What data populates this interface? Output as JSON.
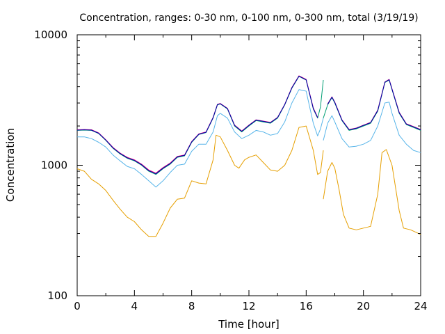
{
  "chart_data": {
    "type": "line",
    "title": "Concentration, ranges: 0-30 nm, 0-100 nm, 0-300 nm, total (3/19/19)",
    "xlabel": "Time [hour]",
    "ylabel": "Concentration",
    "xlim": [
      0,
      24
    ],
    "ylim": [
      100,
      10000
    ],
    "yscale": "log",
    "xticks": [
      0,
      4,
      8,
      12,
      16,
      20,
      24
    ],
    "yticks": [
      100,
      1000,
      10000
    ],
    "xtick_labels": [
      "0",
      "4",
      "8",
      "12",
      "16",
      "20",
      "24"
    ],
    "ytick_labels": [
      "100",
      "1000",
      "10000"
    ],
    "grid": false,
    "legend": "none",
    "series": [
      {
        "color": "#e69f00",
        "points": [
          [
            0,
            940
          ],
          [
            0.5,
            900
          ],
          [
            1,
            780
          ],
          [
            1.5,
            720
          ],
          [
            2,
            640
          ],
          [
            2.5,
            540
          ],
          [
            3,
            460
          ],
          [
            3.5,
            400
          ],
          [
            4,
            370
          ],
          [
            4.5,
            320
          ],
          [
            5,
            285
          ],
          [
            5.5,
            285
          ],
          [
            6,
            360
          ],
          [
            6.5,
            470
          ],
          [
            7,
            550
          ],
          [
            7.5,
            560
          ],
          [
            8,
            760
          ],
          [
            8.5,
            730
          ],
          [
            9,
            720
          ],
          [
            9.5,
            1100
          ],
          [
            9.7,
            1700
          ],
          [
            10,
            1650
          ],
          [
            10.5,
            1300
          ],
          [
            11,
            1000
          ],
          [
            11.3,
            950
          ],
          [
            11.7,
            1100
          ],
          [
            12,
            1150
          ],
          [
            12.5,
            1200
          ],
          [
            13,
            1050
          ],
          [
            13.5,
            920
          ],
          [
            14,
            900
          ],
          [
            14.5,
            1000
          ],
          [
            15,
            1300
          ],
          [
            15.5,
            1950
          ],
          [
            16,
            2000
          ],
          [
            16.5,
            1300
          ],
          [
            16.8,
            850
          ],
          [
            17,
            880
          ],
          [
            17.2,
            1300
          ]
        ],
        "points_2": [
          [
            17.2,
            550
          ],
          [
            17.5,
            900
          ],
          [
            17.8,
            1050
          ],
          [
            18,
            950
          ],
          [
            18.3,
            650
          ],
          [
            18.6,
            420
          ],
          [
            19,
            330
          ],
          [
            19.5,
            320
          ],
          [
            20,
            330
          ],
          [
            20.5,
            340
          ],
          [
            21,
            600
          ],
          [
            21.3,
            1250
          ],
          [
            21.6,
            1320
          ],
          [
            22,
            1000
          ],
          [
            22.5,
            450
          ],
          [
            22.8,
            330
          ],
          [
            23.3,
            320
          ],
          [
            24,
            295
          ]
        ]
      },
      {
        "color": "#56b4e9",
        "points": [
          [
            0,
            1650
          ],
          [
            0.5,
            1650
          ],
          [
            1,
            1600
          ],
          [
            1.5,
            1500
          ],
          [
            2,
            1380
          ],
          [
            2.5,
            1200
          ],
          [
            3,
            1080
          ],
          [
            3.5,
            980
          ],
          [
            4,
            940
          ],
          [
            4.5,
            850
          ],
          [
            5,
            760
          ],
          [
            5.5,
            680
          ],
          [
            6,
            760
          ],
          [
            6.5,
            880
          ],
          [
            7,
            1000
          ],
          [
            7.5,
            1020
          ],
          [
            8,
            1280
          ],
          [
            8.5,
            1450
          ],
          [
            9,
            1450
          ],
          [
            9.5,
            1800
          ],
          [
            9.8,
            2400
          ],
          [
            10,
            2500
          ],
          [
            10.5,
            2300
          ],
          [
            11,
            1800
          ],
          [
            11.5,
            1600
          ],
          [
            12,
            1700
          ],
          [
            12.5,
            1850
          ],
          [
            13,
            1800
          ],
          [
            13.5,
            1700
          ],
          [
            14,
            1750
          ],
          [
            14.5,
            2150
          ],
          [
            15,
            3000
          ],
          [
            15.5,
            3800
          ],
          [
            16,
            3700
          ],
          [
            16.5,
            2100
          ],
          [
            16.8,
            1680
          ],
          [
            17,
            1900
          ],
          [
            17.2,
            2300
          ]
        ],
        "points_2": [
          [
            17.2,
            1550
          ],
          [
            17.5,
            2100
          ],
          [
            17.8,
            2400
          ],
          [
            18,
            2150
          ],
          [
            18.5,
            1600
          ],
          [
            19,
            1380
          ],
          [
            19.5,
            1400
          ],
          [
            20,
            1450
          ],
          [
            20.5,
            1550
          ],
          [
            21,
            2000
          ],
          [
            21.5,
            3000
          ],
          [
            21.8,
            3050
          ],
          [
            22,
            2500
          ],
          [
            22.5,
            1700
          ],
          [
            23,
            1450
          ],
          [
            23.5,
            1300
          ],
          [
            24,
            1250
          ]
        ]
      },
      {
        "color": "#009e73",
        "points": [
          [
            0,
            1850
          ],
          [
            0.5,
            1860
          ],
          [
            1,
            1850
          ],
          [
            1.5,
            1750
          ],
          [
            2,
            1550
          ],
          [
            2.5,
            1350
          ],
          [
            3,
            1220
          ],
          [
            3.5,
            1130
          ],
          [
            4,
            1080
          ],
          [
            4.5,
            1000
          ],
          [
            5,
            900
          ],
          [
            5.5,
            850
          ],
          [
            6,
            940
          ],
          [
            6.5,
            1020
          ],
          [
            7,
            1150
          ],
          [
            7.5,
            1180
          ],
          [
            8,
            1500
          ],
          [
            8.5,
            1720
          ],
          [
            9,
            1780
          ],
          [
            9.5,
            2300
          ],
          [
            9.8,
            2900
          ],
          [
            10,
            2950
          ],
          [
            10.5,
            2700
          ],
          [
            11,
            2000
          ],
          [
            11.5,
            1800
          ],
          [
            12,
            2000
          ],
          [
            12.5,
            2200
          ],
          [
            13,
            2150
          ],
          [
            13.5,
            2100
          ],
          [
            14,
            2300
          ],
          [
            14.5,
            2900
          ],
          [
            15,
            3900
          ],
          [
            15.5,
            4800
          ],
          [
            16,
            4500
          ],
          [
            16.5,
            2700
          ],
          [
            16.8,
            2300
          ],
          [
            17,
            2800
          ],
          [
            17.2,
            4500
          ]
        ],
        "points_2": [
          [
            17.2,
            2300
          ],
          [
            17.5,
            2900
          ],
          [
            17.8,
            3300
          ],
          [
            18,
            3000
          ],
          [
            18.5,
            2200
          ],
          [
            19,
            1850
          ],
          [
            19.5,
            1900
          ],
          [
            20,
            2000
          ],
          [
            20.5,
            2100
          ],
          [
            21,
            2600
          ],
          [
            21.5,
            4300
          ],
          [
            21.8,
            4500
          ],
          [
            22,
            3800
          ],
          [
            22.5,
            2500
          ],
          [
            23,
            2050
          ],
          [
            23.5,
            1950
          ],
          [
            24,
            1850
          ]
        ]
      },
      {
        "color": "#e5007f",
        "points": [
          [
            0,
            1870
          ],
          [
            0.5,
            1880
          ],
          [
            1,
            1870
          ],
          [
            1.5,
            1770
          ],
          [
            2,
            1570
          ],
          [
            2.5,
            1370
          ],
          [
            3,
            1240
          ],
          [
            3.5,
            1150
          ],
          [
            4,
            1100
          ],
          [
            4.5,
            1020
          ],
          [
            5,
            920
          ],
          [
            5.5,
            870
          ],
          [
            6,
            960
          ],
          [
            6.5,
            1040
          ],
          [
            7,
            1170
          ],
          [
            7.5,
            1200
          ],
          [
            8,
            1520
          ],
          [
            8.5,
            1740
          ],
          [
            9,
            1800
          ],
          [
            9.5,
            2330
          ],
          [
            9.8,
            2930
          ],
          [
            10,
            2980
          ],
          [
            10.5,
            2730
          ],
          [
            11,
            2030
          ],
          [
            11.5,
            1830
          ],
          [
            12,
            2030
          ],
          [
            12.5,
            2230
          ],
          [
            13,
            2180
          ],
          [
            13.5,
            2130
          ],
          [
            14,
            2330
          ],
          [
            14.5,
            2930
          ],
          [
            15,
            3950
          ],
          [
            15.5,
            4850
          ],
          [
            16,
            4550
          ],
          [
            16.5,
            2750
          ],
          [
            16.8,
            2330
          ]
        ],
        "points_2": [
          [
            17.5,
            2950
          ],
          [
            17.8,
            3350
          ],
          [
            18,
            3050
          ],
          [
            18.5,
            2230
          ],
          [
            19,
            1880
          ],
          [
            19.5,
            1930
          ],
          [
            20,
            2030
          ],
          [
            20.5,
            2130
          ],
          [
            21,
            2650
          ],
          [
            21.5,
            4350
          ],
          [
            21.8,
            4550
          ],
          [
            22,
            3850
          ],
          [
            22.5,
            2550
          ],
          [
            23,
            2080
          ],
          [
            23.5,
            1980
          ],
          [
            24,
            1880
          ]
        ]
      },
      {
        "color": "#0000aa",
        "points": [
          [
            0,
            1860
          ],
          [
            0.5,
            1870
          ],
          [
            1,
            1860
          ],
          [
            1.5,
            1760
          ],
          [
            2,
            1560
          ],
          [
            2.5,
            1360
          ],
          [
            3,
            1230
          ],
          [
            3.5,
            1140
          ],
          [
            4,
            1090
          ],
          [
            4.5,
            1010
          ],
          [
            5,
            910
          ],
          [
            5.5,
            860
          ],
          [
            6,
            950
          ],
          [
            6.5,
            1030
          ],
          [
            7,
            1160
          ],
          [
            7.5,
            1190
          ],
          [
            8,
            1510
          ],
          [
            8.5,
            1730
          ],
          [
            9,
            1790
          ],
          [
            9.5,
            2320
          ],
          [
            9.8,
            2920
          ],
          [
            10,
            2960
          ],
          [
            10.5,
            2720
          ],
          [
            11,
            2020
          ],
          [
            11.5,
            1820
          ],
          [
            12,
            2020
          ],
          [
            12.5,
            2220
          ],
          [
            13,
            2170
          ],
          [
            13.5,
            2120
          ],
          [
            14,
            2320
          ],
          [
            14.5,
            2920
          ],
          [
            15,
            3930
          ],
          [
            15.5,
            4820
          ],
          [
            16,
            4520
          ],
          [
            16.5,
            2720
          ],
          [
            16.8,
            2320
          ]
        ],
        "points_2": [
          [
            17.5,
            2930
          ],
          [
            17.8,
            3330
          ],
          [
            18,
            3030
          ],
          [
            18.5,
            2220
          ],
          [
            19,
            1870
          ],
          [
            19.5,
            1920
          ],
          [
            20,
            2020
          ],
          [
            20.5,
            2120
          ],
          [
            21,
            2630
          ],
          [
            21.5,
            4330
          ],
          [
            21.8,
            4530
          ],
          [
            22,
            3830
          ],
          [
            22.5,
            2530
          ],
          [
            23,
            2070
          ],
          [
            23.5,
            1970
          ],
          [
            24,
            1870
          ]
        ]
      }
    ]
  }
}
